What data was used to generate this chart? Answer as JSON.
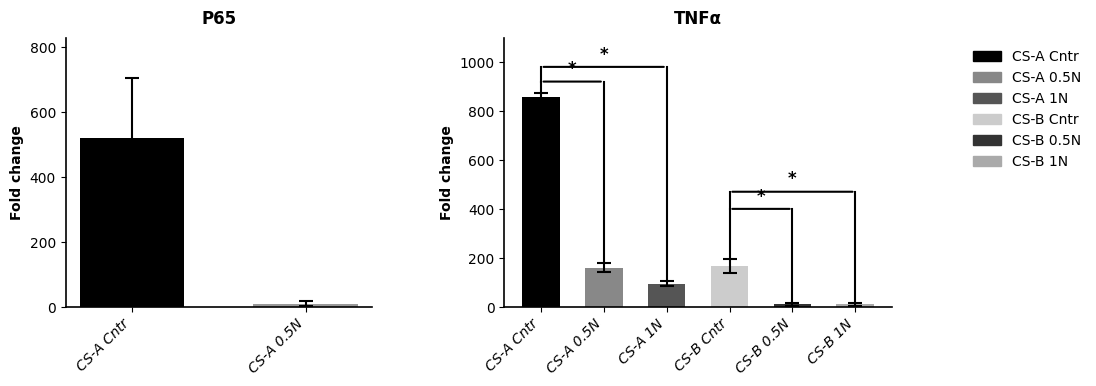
{
  "p65_title": "P65",
  "tnf_title": "TNFα",
  "ylabel": "Fold change",
  "p65_categories": [
    "CS-A Cntr",
    "CS-A 0.5N"
  ],
  "p65_values": [
    520,
    10
  ],
  "p65_errors": [
    185,
    8
  ],
  "p65_colors": [
    "#000000",
    "#999999"
  ],
  "p65_ylim": [
    0,
    830
  ],
  "p65_yticks": [
    0,
    200,
    400,
    600,
    800
  ],
  "p65_legend": [
    "CS-A Cntr",
    "CS-A 0.5N"
  ],
  "p65_legend_colors": [
    "#000000",
    "#999999"
  ],
  "tnf_categories": [
    "CS-A Cntr",
    "CS-A 0.5N",
    "CS-A 1N",
    "CS-B Cntr",
    "CS-B 0.5N",
    "CS-B 1N"
  ],
  "tnf_values": [
    855,
    160,
    95,
    168,
    10,
    10
  ],
  "tnf_errors": [
    20,
    18,
    12,
    28,
    5,
    5
  ],
  "tnf_colors": [
    "#000000",
    "#888888",
    "#555555",
    "#cccccc",
    "#333333",
    "#aaaaaa"
  ],
  "tnf_ylim": [
    0,
    1100
  ],
  "tnf_yticks": [
    0,
    200,
    400,
    600,
    800,
    1000
  ],
  "tnf_legend": [
    "CS-A Cntr",
    "CS-A 0.5N",
    "CS-A 1N",
    "CS-B Cntr",
    "CS-B 0.5N",
    "CS-B 1N"
  ],
  "tnf_legend_colors": [
    "#000000",
    "#888888",
    "#555555",
    "#cccccc",
    "#333333",
    "#aaaaaa"
  ],
  "bg_color": "#ffffff",
  "bar_width": 0.6,
  "font_size": 10,
  "title_fontsize": 12
}
